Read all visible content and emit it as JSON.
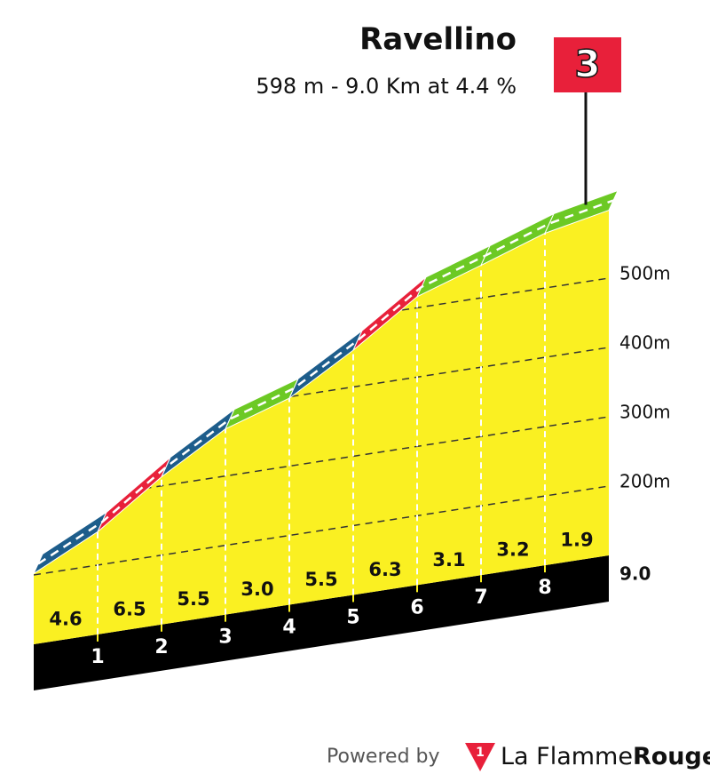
{
  "chart_data": {
    "type": "profile",
    "title": "Ravellino",
    "subtitle": "598 m - 9.0 Km at 4.4 %",
    "category": 3,
    "xlim": [
      0,
      9
    ],
    "xticks": [
      1,
      2,
      3,
      4,
      5,
      6,
      7,
      8,
      {
        "value": 9,
        "label": "9.0"
      }
    ],
    "ylim": [
      100,
      600
    ],
    "yticks": [
      {
        "value": 200,
        "label": "200m"
      },
      {
        "value": 300,
        "label": "300m"
      },
      {
        "value": 400,
        "label": "400m"
      },
      {
        "value": 500,
        "label": "500m"
      }
    ],
    "elevation": {
      "x": [
        0,
        1,
        2,
        3,
        4,
        5,
        6,
        7,
        8,
        9
      ],
      "values": [
        202,
        248,
        313,
        368,
        398,
        453,
        516,
        547,
        579,
        598
      ]
    },
    "gradients": {
      "values": [
        4.6,
        6.5,
        5.5,
        3.0,
        5.5,
        6.3,
        3.1,
        3.2,
        1.9
      ],
      "value_labels": [
        "4.6",
        "6.5",
        "5.5",
        "3.0",
        "5.5",
        "6.3",
        "3.1",
        "3.2",
        "1.9"
      ],
      "colors": [
        "#1d5d8b",
        "#e8203a",
        "#1d5d8b",
        "#6cc924",
        "#1d5d8b",
        "#e8203a",
        "#6cc924",
        "#6cc924",
        "#6cc924"
      ]
    },
    "face_color": "#faf022",
    "side_color": "#a57a1b",
    "base_color": "#000000",
    "flag_color": "#e8203a",
    "footer": {
      "powered_by": "Powered by",
      "logo": "1",
      "brand": "La Flamme",
      "brand_bold": "Rouge"
    }
  }
}
